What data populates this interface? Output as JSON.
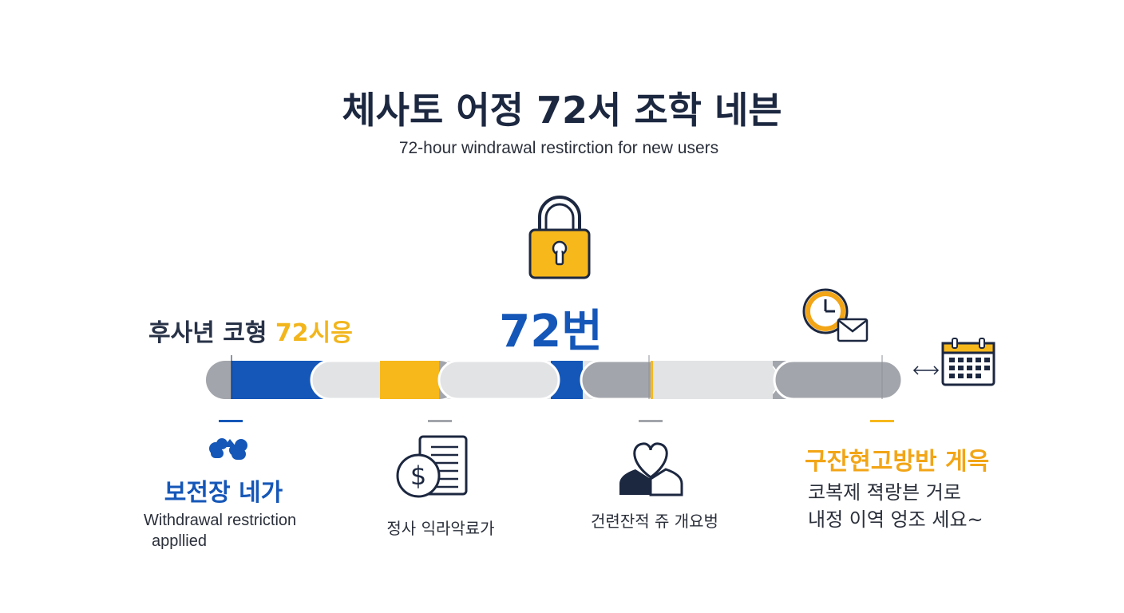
{
  "header": {
    "title": "체사토 어정 72서 조학 네븐",
    "subtitle": "72-hour windrawal restirction for new users"
  },
  "top_left_label": {
    "text": "후사년 코형 ",
    "highlight": "72시응"
  },
  "center_label": "72번",
  "colors": {
    "blue": "#1557b8",
    "yellow": "#f7b81c",
    "gray_dark": "#a2a5ab",
    "gray_light": "#e2e3e5",
    "navy": "#1c2740"
  },
  "icons": {
    "lock": "lock-icon",
    "clock_mail": "clock-mail-icon",
    "calendar": "calendar-icon",
    "hands": "hands-icon",
    "money_doc": "money-document-icon",
    "heart_person": "heart-person-icon",
    "arrow": "double-arrow-icon"
  },
  "columns": [
    {
      "title": "보전장 네가",
      "caption_line1": "Withdrawal restriction",
      "caption_line2": "appllied"
    },
    {
      "caption": "정사 익라악료가"
    },
    {
      "caption": "건련잔적 쥬 개요벙"
    },
    {
      "title": "구잔현고방반 게윽",
      "line1": "코복제 젹랑븐 거로",
      "line2": "내정 이역 엉조 세요~"
    }
  ]
}
